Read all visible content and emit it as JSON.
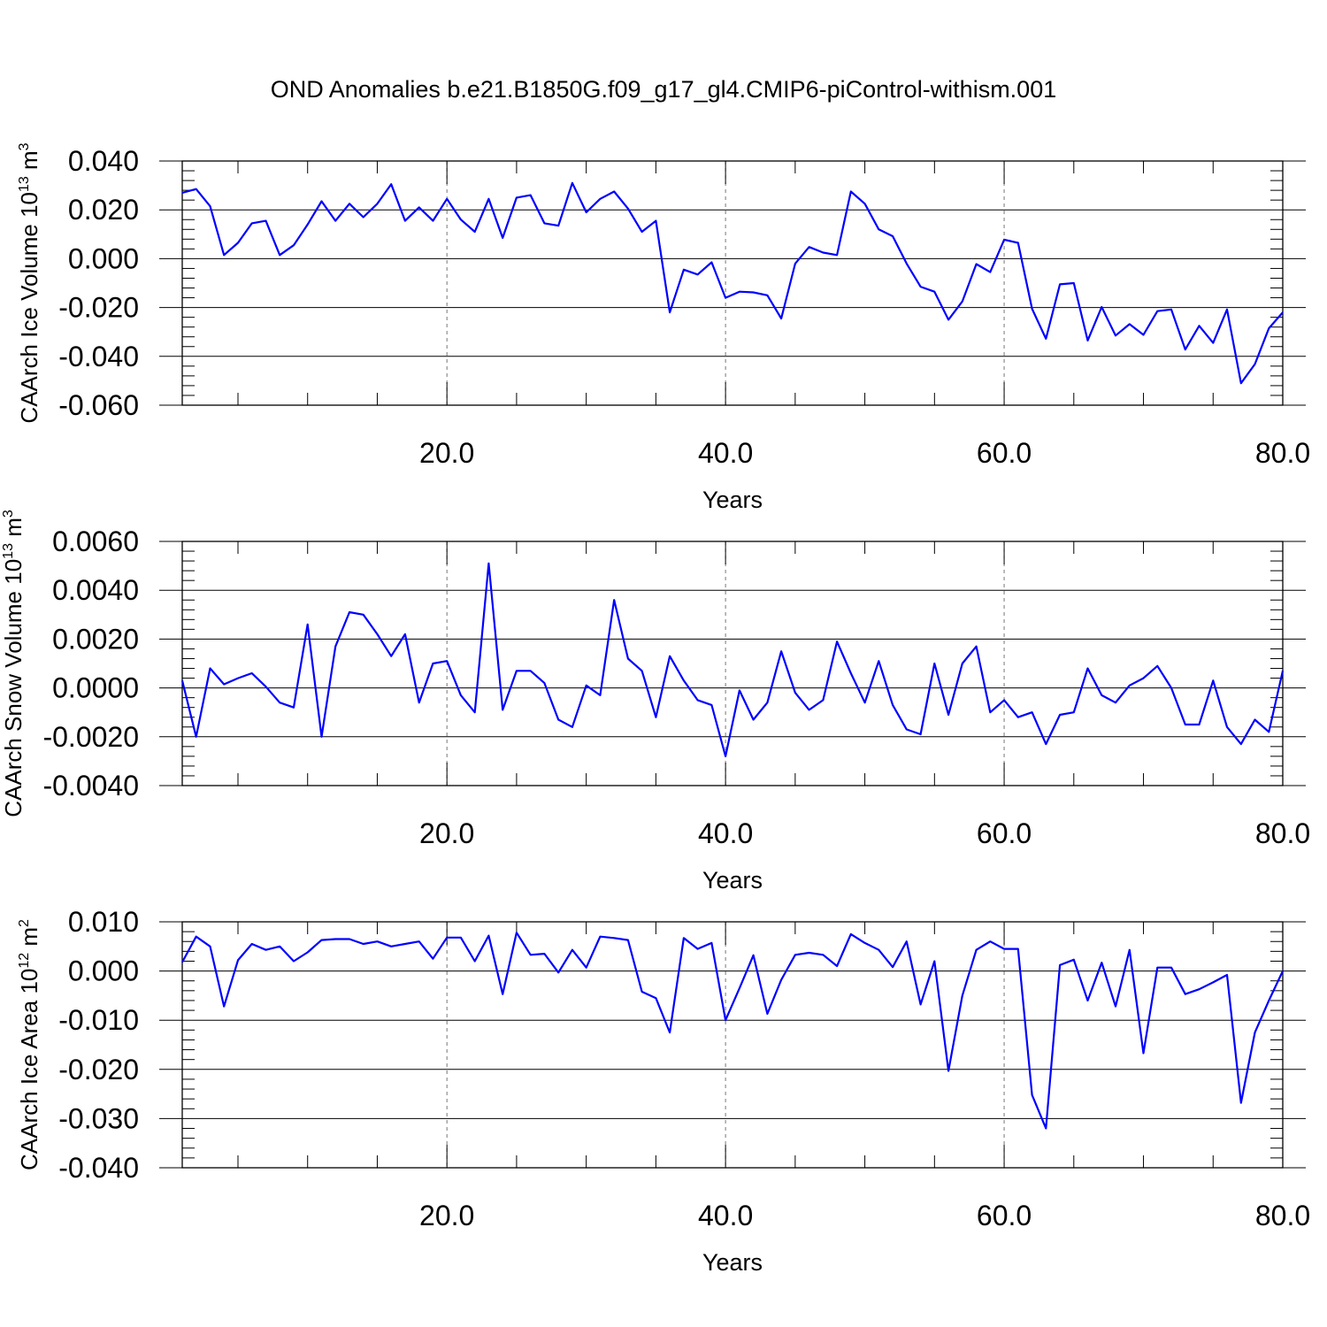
{
  "title": "OND Anomalies b.e21.B1850G.f09_g17_gl4.CMIP6-piControl-withism.001",
  "colors": {
    "series": "#0000ff",
    "axes": "#000000",
    "grid": "#777777"
  },
  "chart_data": [
    {
      "type": "line",
      "ylabel": {
        "text": "CAArch Ice Volume 10",
        "exp": "13",
        "unit": "m",
        "unit_exp": "3"
      },
      "xlabel": "Years",
      "xlim": [
        1,
        80
      ],
      "ylim": [
        -0.06,
        0.04
      ],
      "xticks": [
        20,
        40,
        60,
        80
      ],
      "xtick_labels": [
        "20.0",
        "40.0",
        "60.0",
        "80.0"
      ],
      "yticks": [
        -0.06,
        -0.04,
        -0.02,
        0.0,
        0.02,
        0.04
      ],
      "ytick_labels": [
        "-0.060",
        "-0.040",
        "-0.020",
        "0.000",
        "0.020",
        "0.040"
      ],
      "grid": "vertical dashed at major x ticks",
      "x": [
        1,
        2,
        3,
        4,
        5,
        6,
        7,
        8,
        9,
        10,
        11,
        12,
        13,
        14,
        15,
        16,
        17,
        18,
        19,
        20,
        21,
        22,
        23,
        24,
        25,
        26,
        27,
        28,
        29,
        30,
        31,
        32,
        33,
        34,
        35,
        36,
        37,
        38,
        39,
        40,
        41,
        42,
        43,
        44,
        45,
        46,
        47,
        48,
        49,
        50,
        51,
        52,
        53,
        54,
        55,
        56,
        57,
        58,
        59,
        60,
        61,
        62,
        63,
        64,
        65,
        66,
        67,
        68,
        69,
        70,
        71,
        72,
        73,
        74,
        75,
        76,
        77,
        78,
        79,
        80
      ],
      "values": [
        0.027,
        0.0285,
        0.0215,
        0.0015,
        0.0065,
        0.0145,
        0.0155,
        0.0015,
        0.0055,
        0.014,
        0.0235,
        0.0155,
        0.0225,
        0.017,
        0.0225,
        0.0305,
        0.0155,
        0.021,
        0.0155,
        0.0245,
        0.016,
        0.011,
        0.0245,
        0.0085,
        0.025,
        0.026,
        0.0145,
        0.0135,
        0.031,
        0.019,
        0.0245,
        0.0275,
        0.0205,
        0.011,
        0.0155,
        -0.022,
        -0.0045,
        -0.0065,
        -0.0015,
        -0.016,
        -0.0135,
        -0.0138,
        -0.015,
        -0.0245,
        -0.002,
        0.0048,
        0.0025,
        0.0015,
        0.0275,
        0.0225,
        0.012,
        0.0092,
        -0.002,
        -0.0115,
        -0.0135,
        -0.025,
        -0.0175,
        -0.0022,
        -0.0055,
        0.0078,
        0.0065,
        -0.0205,
        -0.0328,
        -0.0105,
        -0.01,
        -0.0335,
        -0.0198,
        -0.0315,
        -0.0268,
        -0.0312,
        -0.0215,
        -0.0208,
        -0.0372,
        -0.0275,
        -0.0345,
        -0.0208,
        -0.051,
        -0.0432,
        -0.0285,
        -0.022
      ]
    },
    {
      "type": "line",
      "ylabel": {
        "text": "CAArch Snow Volume 10",
        "exp": "13",
        "unit": "m",
        "unit_exp": "3"
      },
      "xlabel": "Years",
      "xlim": [
        1,
        80
      ],
      "ylim": [
        -0.004,
        0.006
      ],
      "xticks": [
        20,
        40,
        60,
        80
      ],
      "xtick_labels": [
        "20.0",
        "40.0",
        "60.0",
        "80.0"
      ],
      "yticks": [
        -0.004,
        -0.002,
        0.0,
        0.002,
        0.004,
        0.006
      ],
      "ytick_labels": [
        "-0.0040",
        "-0.0020",
        "0.0000",
        "0.0020",
        "0.0040",
        "0.0060"
      ],
      "grid": "vertical dashed at major x ticks",
      "x": [
        1,
        2,
        3,
        4,
        5,
        6,
        7,
        8,
        9,
        10,
        11,
        12,
        13,
        14,
        15,
        16,
        17,
        18,
        19,
        20,
        21,
        22,
        23,
        24,
        25,
        26,
        27,
        28,
        29,
        30,
        31,
        32,
        33,
        34,
        35,
        36,
        37,
        38,
        39,
        40,
        41,
        42,
        43,
        44,
        45,
        46,
        47,
        48,
        49,
        50,
        51,
        52,
        53,
        54,
        55,
        56,
        57,
        58,
        59,
        60,
        61,
        62,
        63,
        64,
        65,
        66,
        67,
        68,
        69,
        70,
        71,
        72,
        73,
        74,
        75,
        76,
        77,
        78,
        79,
        80
      ],
      "values": [
        0.0003,
        -0.002,
        0.0008,
        0.00015,
        0.0004,
        0.0006,
        5e-05,
        -0.0006,
        -0.0008,
        0.0026,
        -0.002,
        0.0017,
        0.0031,
        0.003,
        0.0022,
        0.0013,
        0.0022,
        -0.0006,
        0.001,
        0.0011,
        -0.0003,
        -0.001,
        0.0051,
        -0.0009,
        0.0007,
        0.0007,
        0.0002,
        -0.0013,
        -0.0016,
        0.0001,
        -0.0003,
        0.0036,
        0.0012,
        0.0007,
        -0.0012,
        0.0013,
        0.0003,
        -0.0005,
        -0.0007,
        -0.0028,
        -0.0001,
        -0.0013,
        -0.0006,
        0.0015,
        -0.0002,
        -0.0009,
        -0.0005,
        0.0019,
        0.0006,
        -0.0006,
        0.0011,
        -0.0007,
        -0.0017,
        -0.0019,
        0.001,
        -0.0011,
        0.001,
        0.0017,
        -0.001,
        -0.0005,
        -0.0012,
        -0.001,
        -0.0023,
        -0.0011,
        -0.001,
        0.0008,
        -0.0003,
        -0.0006,
        0.0001,
        0.0004,
        0.0009,
        0.0,
        -0.0015,
        -0.0015,
        0.0003,
        -0.0016,
        -0.0023,
        -0.0013,
        -0.0018,
        0.0007
      ]
    },
    {
      "type": "line",
      "ylabel": {
        "text": "CAArch Ice Area 10",
        "exp": "12",
        "unit": "m",
        "unit_exp": "2"
      },
      "xlabel": "Years",
      "xlim": [
        1,
        80
      ],
      "ylim": [
        -0.04,
        0.01
      ],
      "xticks": [
        20,
        40,
        60,
        80
      ],
      "xtick_labels": [
        "20.0",
        "40.0",
        "60.0",
        "80.0"
      ],
      "yticks": [
        -0.04,
        -0.03,
        -0.02,
        -0.01,
        0.0,
        0.01
      ],
      "ytick_labels": [
        "-0.040",
        "-0.030",
        "-0.020",
        "-0.010",
        "0.000",
        "0.010"
      ],
      "grid": "vertical dashed at major x ticks",
      "x": [
        1,
        2,
        3,
        4,
        5,
        6,
        7,
        8,
        9,
        10,
        11,
        12,
        13,
        14,
        15,
        16,
        17,
        18,
        19,
        20,
        21,
        22,
        23,
        24,
        25,
        26,
        27,
        28,
        29,
        30,
        31,
        32,
        33,
        34,
        35,
        36,
        37,
        38,
        39,
        40,
        41,
        42,
        43,
        44,
        45,
        46,
        47,
        48,
        49,
        50,
        51,
        52,
        53,
        54,
        55,
        56,
        57,
        58,
        59,
        60,
        61,
        62,
        63,
        64,
        65,
        66,
        67,
        68,
        69,
        70,
        71,
        72,
        73,
        74,
        75,
        76,
        77,
        78,
        79,
        80
      ],
      "values": [
        0.0018,
        0.007,
        0.005,
        -0.0072,
        0.0022,
        0.0055,
        0.0043,
        0.005,
        0.002,
        0.0038,
        0.0063,
        0.0065,
        0.0065,
        0.0055,
        0.006,
        0.005,
        0.0055,
        0.006,
        0.0025,
        0.0068,
        0.0068,
        0.002,
        0.0072,
        -0.0047,
        0.0078,
        0.0033,
        0.0035,
        -0.0003,
        0.0043,
        0.0007,
        0.007,
        0.0067,
        0.0063,
        -0.0042,
        -0.0055,
        -0.0125,
        0.0067,
        0.0045,
        0.0057,
        -0.01,
        -0.0035,
        0.0032,
        -0.0087,
        -0.0018,
        0.0033,
        0.0037,
        0.0033,
        0.001,
        0.0075,
        0.0057,
        0.0043,
        0.0008,
        0.006,
        -0.0068,
        0.002,
        -0.0203,
        -0.005,
        0.0043,
        0.006,
        0.0045,
        0.0045,
        -0.0252,
        -0.032,
        0.0012,
        0.0023,
        -0.006,
        0.0017,
        -0.0072,
        0.0043,
        -0.0167,
        0.0007,
        0.0007,
        -0.0047,
        -0.0037,
        -0.0023,
        -0.0008,
        -0.0268,
        -0.0125,
        -0.006,
        0.0
      ]
    }
  ]
}
